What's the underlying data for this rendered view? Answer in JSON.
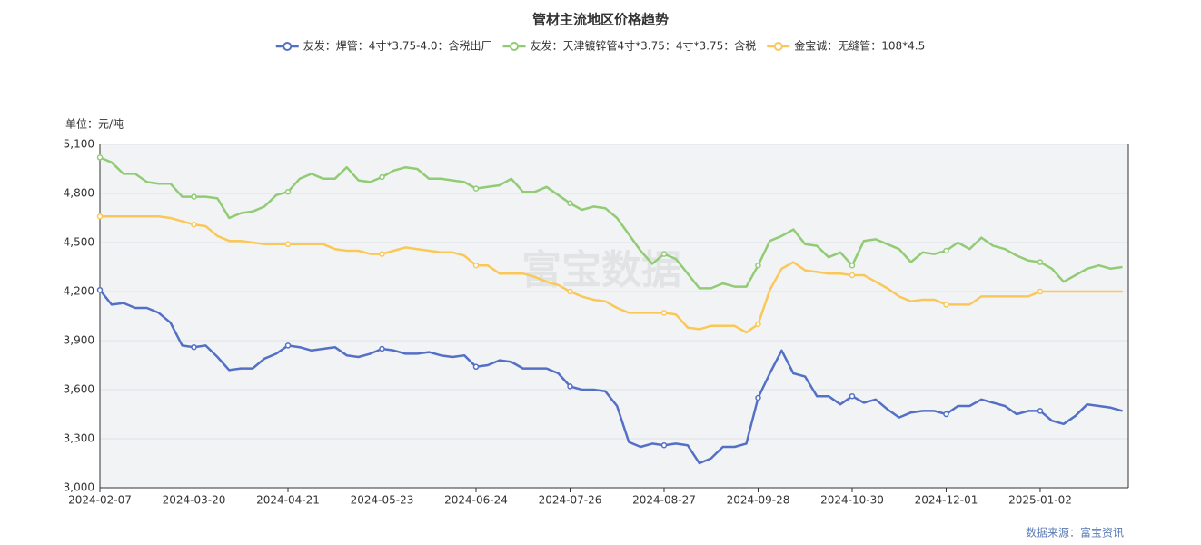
{
  "chart_data": {
    "type": "line",
    "title": "管材主流地区价格趋势",
    "y_unit_label": "单位：元/吨",
    "source": "数据来源：富宝资讯",
    "watermark": "富宝数据",
    "categories": [
      "2024-02-07",
      null,
      null,
      null,
      null,
      null,
      null,
      null,
      "2024-03-20",
      null,
      null,
      null,
      null,
      null,
      null,
      null,
      "2024-04-21",
      null,
      null,
      null,
      null,
      null,
      null,
      null,
      "2024-05-23",
      null,
      null,
      null,
      null,
      null,
      null,
      null,
      "2024-06-24",
      null,
      null,
      null,
      null,
      null,
      null,
      null,
      "2024-07-26",
      null,
      null,
      null,
      null,
      null,
      null,
      null,
      "2024-08-27",
      null,
      null,
      null,
      null,
      null,
      null,
      null,
      "2024-09-28",
      null,
      null,
      null,
      null,
      null,
      null,
      null,
      "2024-10-30",
      null,
      null,
      null,
      null,
      null,
      null,
      null,
      "2024-12-01",
      null,
      null,
      null,
      null,
      null,
      null,
      null,
      "2025-01-02",
      null,
      null,
      null,
      null,
      null,
      null,
      null
    ],
    "series": [
      {
        "name": "友发：焊管：4寸*3.75-4.0：含税出厂",
        "color": "#5470c6",
        "values": [
          4210,
          4120,
          4130,
          4100,
          4100,
          4070,
          4010,
          3870,
          3860,
          3870,
          3800,
          3720,
          3730,
          3730,
          3790,
          3820,
          3870,
          3860,
          3840,
          3850,
          3860,
          3810,
          3800,
          3820,
          3850,
          3840,
          3820,
          3820,
          3830,
          3810,
          3800,
          3810,
          3740,
          3750,
          3780,
          3770,
          3730,
          3730,
          3730,
          3700,
          3620,
          3600,
          3600,
          3590,
          3500,
          3280,
          3250,
          3270,
          3260,
          3270,
          3260,
          3150,
          3180,
          3250,
          3250,
          3270,
          3550,
          3700,
          3840,
          3700,
          3680,
          3560,
          3560,
          3510,
          3560,
          3520,
          3540,
          3480,
          3430,
          3460,
          3470,
          3470,
          3450,
          3500,
          3500,
          3540,
          3520,
          3500,
          3450,
          3470,
          3470,
          3410,
          3390,
          3440,
          3510,
          3500,
          3490,
          3470
        ]
      },
      {
        "name": "友发：天津镀锌管4寸*3.75：4寸*3.75：含税",
        "color": "#91cc75",
        "values": [
          5020,
          4990,
          4920,
          4920,
          4870,
          4860,
          4860,
          4780,
          4780,
          4780,
          4770,
          4650,
          4680,
          4690,
          4720,
          4790,
          4810,
          4890,
          4920,
          4890,
          4890,
          4960,
          4880,
          4870,
          4900,
          4940,
          4960,
          4950,
          4890,
          4890,
          4880,
          4870,
          4830,
          4840,
          4850,
          4890,
          4810,
          4810,
          4840,
          4790,
          4740,
          4700,
          4720,
          4710,
          4650,
          4550,
          4450,
          4370,
          4430,
          4400,
          4310,
          4220,
          4220,
          4250,
          4230,
          4230,
          4360,
          4510,
          4540,
          4580,
          4490,
          4480,
          4410,
          4440,
          4360,
          4510,
          4520,
          4490,
          4460,
          4380,
          4440,
          4430,
          4450,
          4500,
          4460,
          4530,
          4480,
          4460,
          4420,
          4390,
          4380,
          4340,
          4260,
          4300,
          4340,
          4360,
          4340,
          4350
        ]
      },
      {
        "name": "金宝诚：无缝管：108*4.5",
        "color": "#fac858",
        "values": [
          4660,
          4660,
          4660,
          4660,
          4660,
          4660,
          4650,
          4630,
          4610,
          4600,
          4540,
          4510,
          4510,
          4500,
          4490,
          4490,
          4490,
          4490,
          4490,
          4490,
          4460,
          4450,
          4450,
          4430,
          4430,
          4450,
          4470,
          4460,
          4450,
          4440,
          4440,
          4420,
          4360,
          4360,
          4310,
          4310,
          4310,
          4290,
          4260,
          4240,
          4200,
          4170,
          4150,
          4140,
          4100,
          4070,
          4070,
          4070,
          4070,
          4060,
          3980,
          3970,
          3990,
          3990,
          3990,
          3950,
          4000,
          4210,
          4340,
          4380,
          4330,
          4320,
          4310,
          4310,
          4300,
          4300,
          4260,
          4220,
          4170,
          4140,
          4150,
          4150,
          4120,
          4120,
          4120,
          4170,
          4170,
          4170,
          4170,
          4170,
          4200,
          4200,
          4200,
          4200,
          4200,
          4200,
          4200,
          4200
        ]
      }
    ],
    "ylim": [
      3000,
      5100
    ],
    "yticks": [
      {
        "value": 3000,
        "label": "3,000"
      },
      {
        "value": 3300,
        "label": "3,300"
      },
      {
        "value": 3600,
        "label": "3,600"
      },
      {
        "value": 3900,
        "label": "3,900"
      },
      {
        "value": 4200,
        "label": "4,200"
      },
      {
        "value": 4500,
        "label": "4,500"
      },
      {
        "value": 4800,
        "label": "4,800"
      },
      {
        "value": 5100,
        "label": "5,100"
      }
    ],
    "grid": true
  }
}
